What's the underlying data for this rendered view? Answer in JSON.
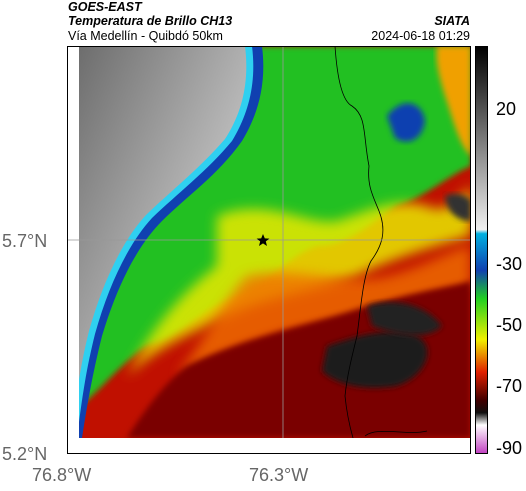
{
  "header": {
    "satellite": "GOES-EAST",
    "product": "Temperatura de Brillo CH13",
    "route": "Vía Medellín - Quibdó 50km",
    "org": "SIATA",
    "datetime": "2024-06-18 01:29"
  },
  "map": {
    "lat_labels": [
      "5.7°N",
      "5.2°N"
    ],
    "lon_labels": [
      "76.8°W",
      "76.3°W"
    ],
    "marker": "star-marker"
  },
  "colorbar": {
    "ticks": [
      "20",
      "-30",
      "-50",
      "-70",
      "-90"
    ],
    "colors": {
      "warm_gray_light": "#e8e8e8",
      "cyan": "#2fd0f0",
      "blue": "#1040b0",
      "green": "#20d020",
      "yellow": "#f0f000",
      "red": "#e02000",
      "dark_red": "#600000",
      "black": "#101010",
      "magenta": "#c040c0"
    }
  }
}
